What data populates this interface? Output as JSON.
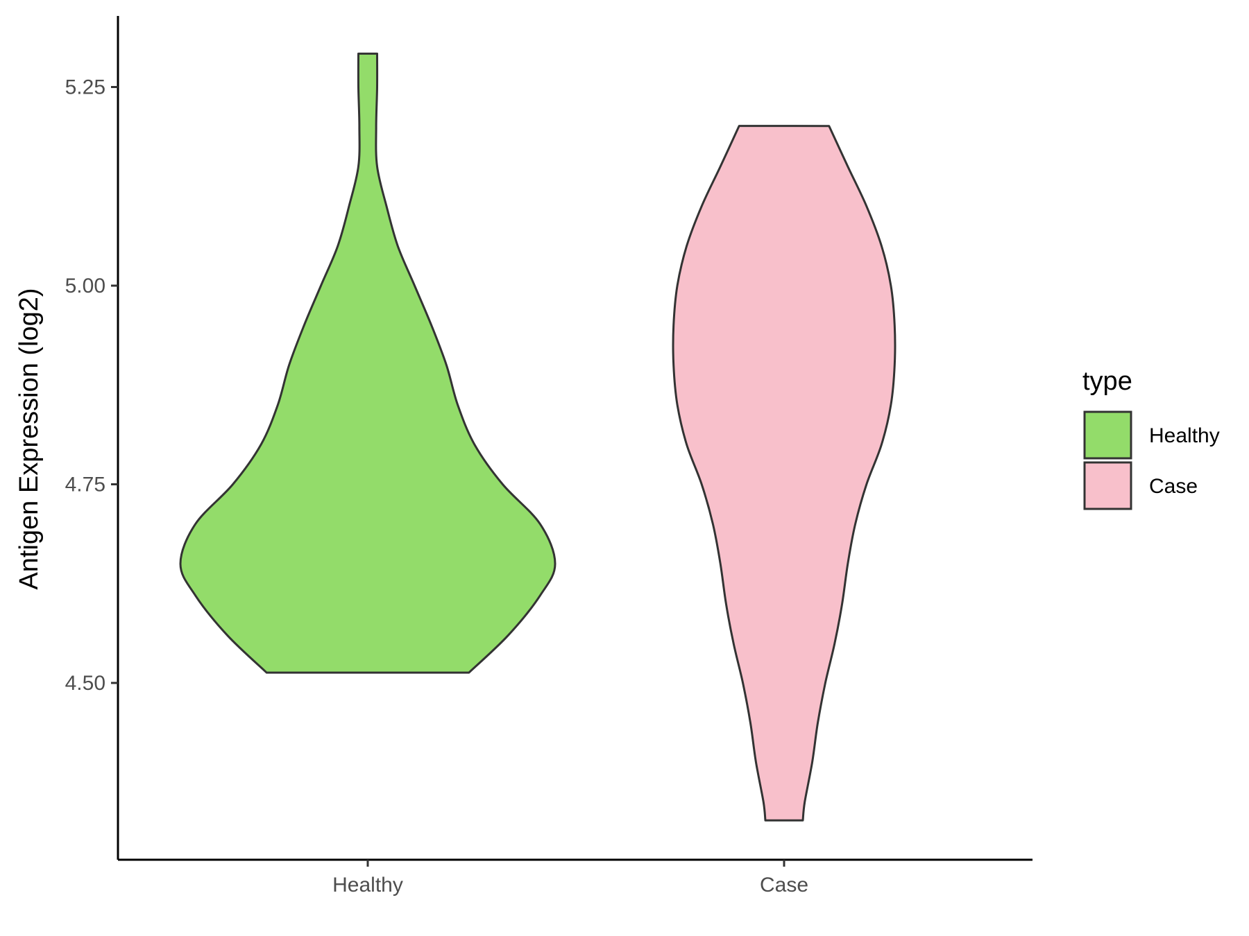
{
  "chart_data": {
    "type": "violin",
    "ylabel": "Antigen Expression (log2)",
    "xlabel": "",
    "categories": [
      "Healthy",
      "Case"
    ],
    "ylim": [
      4.28,
      5.34
    ],
    "y_ticks": [
      4.5,
      4.75,
      5.0,
      5.25
    ],
    "y_tick_labels": [
      "4.50",
      "4.75",
      "5.00",
      "5.25"
    ],
    "grid": false,
    "legend": {
      "title": "type",
      "position": "right",
      "entries": [
        {
          "label": "Healthy",
          "color": "#93DC6A"
        },
        {
          "label": "Case",
          "color": "#F8C0CB"
        }
      ]
    },
    "series": [
      {
        "category": "Healthy",
        "color": "#93DC6A",
        "min": 4.513,
        "max": 5.292,
        "profile": [
          [
            4.513,
            0.54
          ],
          [
            4.56,
            0.75
          ],
          [
            4.61,
            0.92
          ],
          [
            4.65,
            1.0
          ],
          [
            4.7,
            0.92
          ],
          [
            4.75,
            0.72
          ],
          [
            4.8,
            0.57
          ],
          [
            4.85,
            0.48
          ],
          [
            4.9,
            0.42
          ],
          [
            4.95,
            0.34
          ],
          [
            5.0,
            0.25
          ],
          [
            5.05,
            0.16
          ],
          [
            5.1,
            0.1
          ],
          [
            5.15,
            0.05
          ],
          [
            5.2,
            0.045
          ],
          [
            5.25,
            0.05
          ],
          [
            5.292,
            0.05
          ]
        ]
      },
      {
        "category": "Case",
        "color": "#F8C0CB",
        "min": 4.327,
        "max": 5.201,
        "profile": [
          [
            4.327,
            0.1
          ],
          [
            4.35,
            0.11
          ],
          [
            4.4,
            0.15
          ],
          [
            4.45,
            0.18
          ],
          [
            4.5,
            0.22
          ],
          [
            4.55,
            0.27
          ],
          [
            4.6,
            0.31
          ],
          [
            4.65,
            0.34
          ],
          [
            4.7,
            0.38
          ],
          [
            4.75,
            0.44
          ],
          [
            4.8,
            0.52
          ],
          [
            4.85,
            0.57
          ],
          [
            4.9,
            0.59
          ],
          [
            4.95,
            0.59
          ],
          [
            5.0,
            0.57
          ],
          [
            5.05,
            0.52
          ],
          [
            5.1,
            0.44
          ],
          [
            5.15,
            0.34
          ],
          [
            5.201,
            0.24
          ]
        ]
      }
    ]
  }
}
